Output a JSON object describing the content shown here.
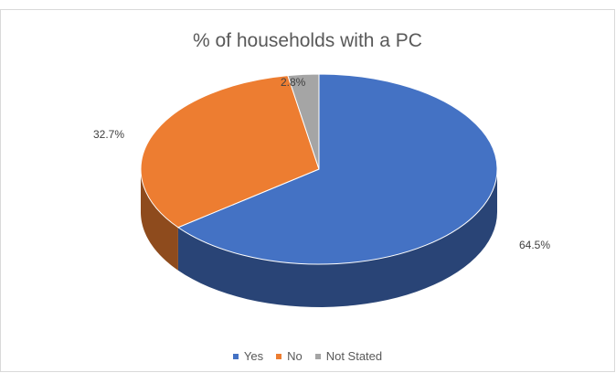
{
  "chart_data": {
    "type": "pie",
    "title": "% of households with a PC",
    "categories": [
      "Yes",
      "No",
      "Not Stated"
    ],
    "values": [
      64.5,
      32.7,
      2.8
    ],
    "data_labels": [
      "64.5%",
      "32.7%",
      "2.8%"
    ],
    "colors": [
      "#4472c4",
      "#ed7d31",
      "#a5a5a5"
    ],
    "legend_position": "bottom",
    "style": "3d-pie"
  }
}
